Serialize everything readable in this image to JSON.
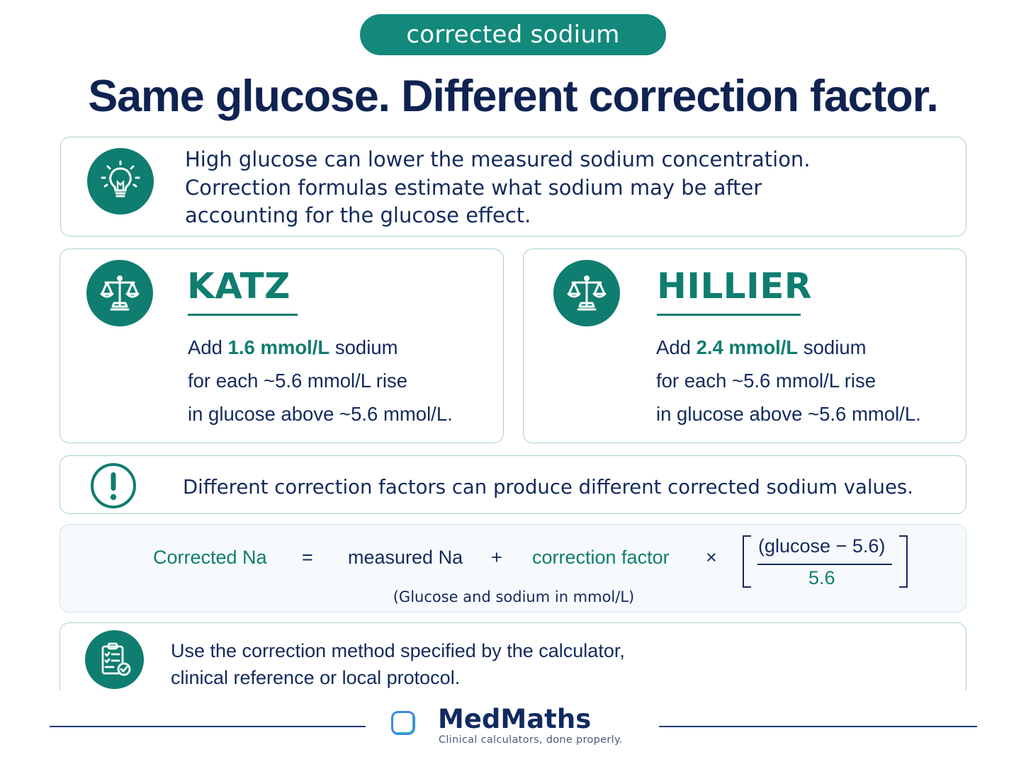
{
  "badge": "corrected sodium",
  "headline": "Same glucose. Different correction factor.",
  "intro": {
    "icon": "lightbulb-icon",
    "line1": "High glucose can lower the measured sodium concentration.",
    "line2": "Correction formulas estimate what sodium may be after",
    "line3": "accounting for the glucose effect."
  },
  "methods": [
    {
      "icon": "scales-icon",
      "name": "KATZ",
      "add_prefix": "Add ",
      "factor": "1.6 mmol/L",
      "add_suffix": " sodium",
      "line2": "for each ~5.6 mmol/L rise",
      "line3": "in glucose above ~5.6 mmol/L."
    },
    {
      "icon": "scales-icon",
      "name": "HILLIER",
      "add_prefix": "Add ",
      "factor": "2.4 mmol/L",
      "add_suffix": " sodium",
      "line2": "for each ~5.6 mmol/L rise",
      "line3": "in glucose above ~5.6 mmol/L."
    }
  ],
  "warning": {
    "icon": "exclamation-icon",
    "text": "Different correction factors can produce different corrected sodium values."
  },
  "formula": {
    "lhs": "Corrected Na",
    "equals": "=",
    "measured": "measured Na",
    "plus": "+",
    "factor": "correction factor",
    "times": "×",
    "numerator": "(glucose − 5.6)",
    "denominator": "5.6",
    "note": "(Glucose and sodium in mmol/L)"
  },
  "protocol": {
    "icon": "clipboard-check-icon",
    "line1": "Use the correction method specified by the calculator,",
    "line2": "clinical reference or local protocol."
  },
  "footer": {
    "brand": "MedMaths",
    "tagline": "Clinical calculators, done properly."
  },
  "colors": {
    "teal": "#0f7d6f",
    "navy": "#132a5c",
    "border": "#a8cfd4"
  }
}
